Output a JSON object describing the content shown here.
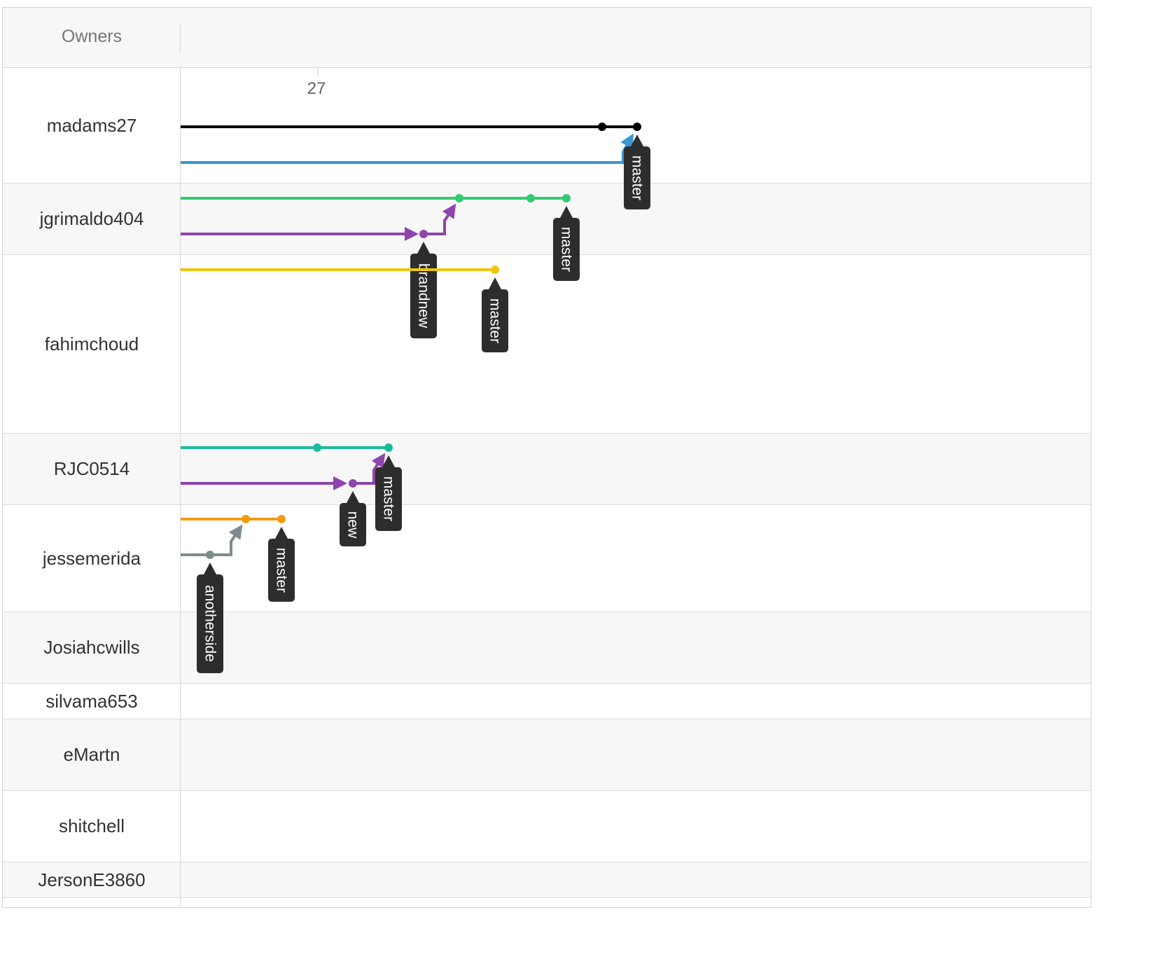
{
  "header": {
    "owners_label": "Owners"
  },
  "timeline": {
    "tick_label": "27"
  },
  "owners": [
    "madams27",
    "jgrimaldo404",
    "fahimchoud",
    "RJC0514",
    "jessemerida",
    "Josiahcwills",
    "silvama653",
    "eMartn",
    "shitchell",
    "JersonE3860"
  ],
  "colors": {
    "black": "#000000",
    "blue": "#3b95d3",
    "green": "#2ecc71",
    "purple": "#8e44ad",
    "yellow": "#f1c40f",
    "teal": "#1abc9c",
    "orange": "#f39c12",
    "gray": "#7f8c8d",
    "tag_bg": "#2d2d2d"
  },
  "branch_tags": {
    "madams27_master": "master",
    "jgrimaldo404_master": "master",
    "jgrimaldo404_brandnew": "brandnew",
    "fahimchoud_master": "master",
    "RJC0514_master": "master",
    "RJC0514_new": "new",
    "jessemerida_master": "master",
    "jessemerida_anotherside": "anotherside"
  }
}
